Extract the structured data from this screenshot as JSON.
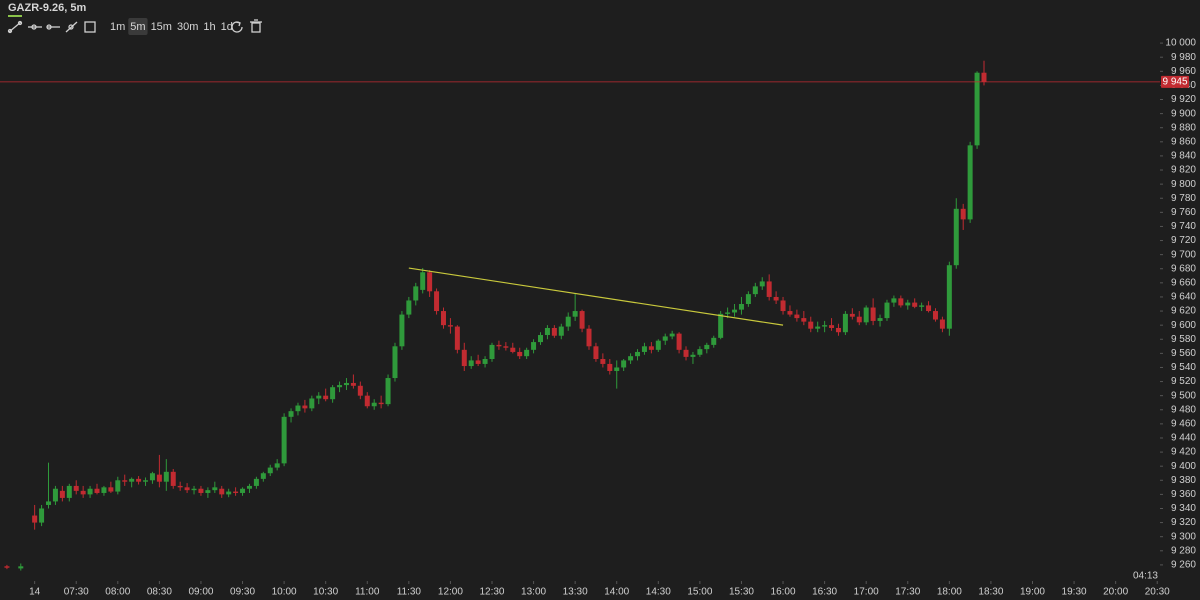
{
  "toolbar": {
    "symbol": "GAZR-9.26, 5m",
    "intervals": [
      "1m",
      "5m",
      "15m",
      "30m",
      "1h",
      "1d"
    ],
    "active_interval": 1
  },
  "chart_data": {
    "type": "candlestick",
    "up_color": "#2f9a3b",
    "down_color": "#c22b31",
    "xlim": [
      "06:35",
      "20:32"
    ],
    "ylim": [
      9240,
      10020
    ],
    "xticks": [
      {
        "value": "07:00",
        "label": "14"
      },
      "07:30",
      "08:00",
      "08:30",
      "09:00",
      "09:30",
      "10:00",
      "10:30",
      "11:00",
      "11:30",
      "12:00",
      "12:30",
      "13:00",
      "13:30",
      "14:00",
      "14:30",
      "15:00",
      "15:30",
      "16:00",
      "16:30",
      "17:00",
      "17:30",
      "18:00",
      "18:30",
      "19:00",
      "19:30",
      "20:00",
      "20:30"
    ],
    "yticks": [
      {
        "value": 9260,
        "label": "9 260"
      },
      {
        "value": 9280,
        "label": "9 280"
      },
      {
        "value": 9300,
        "label": "9 300"
      },
      {
        "value": 9320,
        "label": "9 320"
      },
      {
        "value": 9340,
        "label": "9 340"
      },
      {
        "value": 9360,
        "label": "9 360"
      },
      {
        "value": 9380,
        "label": "9 380"
      },
      {
        "value": 9400,
        "label": "9 400"
      },
      {
        "value": 9420,
        "label": "9 420"
      },
      {
        "value": 9440,
        "label": "9 440"
      },
      {
        "value": 9460,
        "label": "9 460"
      },
      {
        "value": 9480,
        "label": "9 480"
      },
      {
        "value": 9500,
        "label": "9 500"
      },
      {
        "value": 9520,
        "label": "9 520"
      },
      {
        "value": 9540,
        "label": "9 540"
      },
      {
        "value": 9560,
        "label": "9 560"
      },
      {
        "value": 9580,
        "label": "9 580"
      },
      {
        "value": 9600,
        "label": "9 600"
      },
      {
        "value": 9620,
        "label": "9 620"
      },
      {
        "value": 9640,
        "label": "9 640"
      },
      {
        "value": 9660,
        "label": "9 660"
      },
      {
        "value": 9680,
        "label": "9 680"
      },
      {
        "value": 9700,
        "label": "9 700"
      },
      {
        "value": 9720,
        "label": "9 720"
      },
      {
        "value": 9740,
        "label": "9 740"
      },
      {
        "value": 9760,
        "label": "9 760"
      },
      {
        "value": 9780,
        "label": "9 780"
      },
      {
        "value": 9800,
        "label": "9 800"
      },
      {
        "value": 9820,
        "label": "9 820"
      },
      {
        "value": 9840,
        "label": "9 840"
      },
      {
        "value": 9860,
        "label": "9 860"
      },
      {
        "value": 9880,
        "label": "9 880"
      },
      {
        "value": 9900,
        "label": "9 900"
      },
      {
        "value": 9920,
        "label": "9 920"
      },
      {
        "value": 9940,
        "label": "9 940"
      },
      {
        "value": 9960,
        "label": "9 960"
      },
      {
        "value": 9980,
        "label": "9 980"
      },
      {
        "value": 10000,
        "label": "10 000"
      }
    ],
    "last_price": {
      "value": 9945,
      "label": "9 945"
    },
    "last_price_color": "#c22b31",
    "trendline": {
      "x": [
        "11:30",
        "16:00"
      ],
      "y": [
        9681,
        9600
      ],
      "color": "#c9c93c"
    },
    "countdown": "04:13",
    "x": [
      "06:40",
      "06:50",
      "07:00",
      "07:05",
      "07:10",
      "07:15",
      "07:20",
      "07:25",
      "07:30",
      "07:35",
      "07:40",
      "07:45",
      "07:50",
      "07:55",
      "08:00",
      "08:05",
      "08:10",
      "08:15",
      "08:20",
      "08:25",
      "08:30",
      "08:35",
      "08:40",
      "08:45",
      "08:50",
      "08:55",
      "09:00",
      "09:05",
      "09:10",
      "09:15",
      "09:20",
      "09:25",
      "09:30",
      "09:35",
      "09:40",
      "09:45",
      "09:50",
      "09:55",
      "10:00",
      "10:05",
      "10:10",
      "10:15",
      "10:20",
      "10:25",
      "10:30",
      "10:35",
      "10:40",
      "10:45",
      "10:50",
      "10:55",
      "11:00",
      "11:05",
      "11:10",
      "11:15",
      "11:20",
      "11:25",
      "11:30",
      "11:35",
      "11:40",
      "11:45",
      "11:50",
      "11:55",
      "12:00",
      "12:05",
      "12:10",
      "12:15",
      "12:20",
      "12:25",
      "12:30",
      "12:35",
      "12:40",
      "12:45",
      "12:50",
      "12:55",
      "13:00",
      "13:05",
      "13:10",
      "13:15",
      "13:20",
      "13:25",
      "13:30",
      "13:35",
      "13:40",
      "13:45",
      "13:50",
      "13:55",
      "14:00",
      "14:05",
      "14:10",
      "14:15",
      "14:20",
      "14:25",
      "14:30",
      "14:35",
      "14:40",
      "14:45",
      "14:50",
      "14:55",
      "15:00",
      "15:05",
      "15:10",
      "15:15",
      "15:20",
      "15:25",
      "15:30",
      "15:35",
      "15:40",
      "15:45",
      "15:50",
      "15:55",
      "16:00",
      "16:05",
      "16:10",
      "16:15",
      "16:20",
      "16:25",
      "16:30",
      "16:35",
      "16:40",
      "16:45",
      "16:50",
      "16:55",
      "17:00",
      "17:05",
      "17:10",
      "17:15",
      "17:20",
      "17:25",
      "17:30",
      "17:35",
      "17:40",
      "17:45",
      "17:50",
      "17:55",
      "18:00",
      "18:05",
      "18:10",
      "18:15",
      "18:20",
      "18:25"
    ],
    "ohlc": [
      [
        9258,
        9260,
        9254,
        9256
      ],
      [
        9255,
        9262,
        9252,
        9258
      ],
      [
        9330,
        9345,
        9310,
        9320
      ],
      [
        9320,
        9345,
        9315,
        9340
      ],
      [
        9345,
        9405,
        9340,
        9350
      ],
      [
        9350,
        9372,
        9345,
        9368
      ],
      [
        9365,
        9372,
        9350,
        9355
      ],
      [
        9355,
        9375,
        9350,
        9372
      ],
      [
        9372,
        9380,
        9360,
        9365
      ],
      [
        9365,
        9372,
        9355,
        9360
      ],
      [
        9360,
        9372,
        9355,
        9368
      ],
      [
        9368,
        9375,
        9360,
        9362
      ],
      [
        9362,
        9372,
        9358,
        9370
      ],
      [
        9370,
        9378,
        9362,
        9364
      ],
      [
        9364,
        9385,
        9360,
        9380
      ],
      [
        9380,
        9388,
        9372,
        9378
      ],
      [
        9378,
        9384,
        9370,
        9382
      ],
      [
        9382,
        9386,
        9374,
        9378
      ],
      [
        9378,
        9384,
        9372,
        9380
      ],
      [
        9380,
        9392,
        9375,
        9390
      ],
      [
        9388,
        9416,
        9370,
        9378
      ],
      [
        9378,
        9410,
        9365,
        9392
      ],
      [
        9392,
        9396,
        9368,
        9372
      ],
      [
        9372,
        9378,
        9365,
        9370
      ],
      [
        9370,
        9376,
        9362,
        9366
      ],
      [
        9366,
        9372,
        9360,
        9368
      ],
      [
        9368,
        9372,
        9358,
        9362
      ],
      [
        9362,
        9370,
        9355,
        9366
      ],
      [
        9366,
        9378,
        9362,
        9370
      ],
      [
        9368,
        9372,
        9355,
        9360
      ],
      [
        9360,
        9368,
        9356,
        9364
      ],
      [
        9364,
        9370,
        9358,
        9362
      ],
      [
        9362,
        9370,
        9358,
        9368
      ],
      [
        9368,
        9375,
        9362,
        9372
      ],
      [
        9372,
        9385,
        9368,
        9382
      ],
      [
        9382,
        9392,
        9378,
        9390
      ],
      [
        9390,
        9402,
        9386,
        9398
      ],
      [
        9398,
        9410,
        9394,
        9404
      ],
      [
        9404,
        9475,
        9400,
        9470
      ],
      [
        9470,
        9482,
        9462,
        9478
      ],
      [
        9478,
        9490,
        9472,
        9486
      ],
      [
        9486,
        9494,
        9476,
        9482
      ],
      [
        9482,
        9500,
        9478,
        9496
      ],
      [
        9496,
        9505,
        9488,
        9500
      ],
      [
        9500,
        9510,
        9492,
        9495
      ],
      [
        9495,
        9515,
        9490,
        9512
      ],
      [
        9512,
        9520,
        9505,
        9515
      ],
      [
        9515,
        9525,
        9508,
        9518
      ],
      [
        9518,
        9530,
        9510,
        9514
      ],
      [
        9514,
        9520,
        9495,
        9500
      ],
      [
        9500,
        9505,
        9482,
        9485
      ],
      [
        9485,
        9495,
        9480,
        9490
      ],
      [
        9490,
        9500,
        9482,
        9488
      ],
      [
        9488,
        9530,
        9485,
        9525
      ],
      [
        9525,
        9575,
        9520,
        9570
      ],
      [
        9570,
        9620,
        9565,
        9615
      ],
      [
        9615,
        9640,
        9610,
        9635
      ],
      [
        9635,
        9660,
        9628,
        9655
      ],
      [
        9650,
        9681,
        9645,
        9675
      ],
      [
        9675,
        9678,
        9640,
        9648
      ],
      [
        9648,
        9652,
        9615,
        9620
      ],
      [
        9620,
        9625,
        9595,
        9600
      ],
      [
        9600,
        9610,
        9588,
        9598
      ],
      [
        9598,
        9600,
        9560,
        9565
      ],
      [
        9565,
        9575,
        9535,
        9542
      ],
      [
        9542,
        9556,
        9538,
        9550
      ],
      [
        9550,
        9558,
        9542,
        9545
      ],
      [
        9545,
        9556,
        9540,
        9552
      ],
      [
        9552,
        9575,
        9548,
        9572
      ],
      [
        9572,
        9578,
        9565,
        9570
      ],
      [
        9570,
        9576,
        9564,
        9568
      ],
      [
        9568,
        9575,
        9560,
        9562
      ],
      [
        9562,
        9568,
        9552,
        9556
      ],
      [
        9556,
        9568,
        9552,
        9565
      ],
      [
        9565,
        9580,
        9560,
        9576
      ],
      [
        9576,
        9590,
        9572,
        9586
      ],
      [
        9586,
        9600,
        9580,
        9596
      ],
      [
        9596,
        9600,
        9582,
        9585
      ],
      [
        9585,
        9602,
        9580,
        9598
      ],
      [
        9598,
        9618,
        9592,
        9612
      ],
      [
        9612,
        9645,
        9606,
        9620
      ],
      [
        9620,
        9622,
        9590,
        9595
      ],
      [
        9595,
        9600,
        9565,
        9570
      ],
      [
        9570,
        9575,
        9548,
        9552
      ],
      [
        9552,
        9560,
        9540,
        9545
      ],
      [
        9545,
        9552,
        9530,
        9535
      ],
      [
        9535,
        9550,
        9510,
        9540
      ],
      [
        9540,
        9552,
        9535,
        9550
      ],
      [
        9550,
        9560,
        9545,
        9556
      ],
      [
        9556,
        9566,
        9550,
        9562
      ],
      [
        9562,
        9575,
        9558,
        9570
      ],
      [
        9570,
        9576,
        9560,
        9565
      ],
      [
        9565,
        9580,
        9562,
        9578
      ],
      [
        9578,
        9588,
        9572,
        9584
      ],
      [
        9584,
        9592,
        9580,
        9588
      ],
      [
        9588,
        9590,
        9560,
        9565
      ],
      [
        9565,
        9570,
        9550,
        9555
      ],
      [
        9555,
        9562,
        9545,
        9558
      ],
      [
        9558,
        9570,
        9555,
        9566
      ],
      [
        9566,
        9575,
        9560,
        9572
      ],
      [
        9572,
        9585,
        9568,
        9582
      ],
      [
        9582,
        9620,
        9580,
        9616
      ],
      [
        9616,
        9625,
        9610,
        9618
      ],
      [
        9618,
        9630,
        9612,
        9622
      ],
      [
        9622,
        9640,
        9615,
        9630
      ],
      [
        9630,
        9648,
        9626,
        9644
      ],
      [
        9644,
        9660,
        9640,
        9655
      ],
      [
        9655,
        9668,
        9650,
        9662
      ],
      [
        9662,
        9672,
        9635,
        9640
      ],
      [
        9640,
        9648,
        9630,
        9635
      ],
      [
        9635,
        9640,
        9615,
        9620
      ],
      [
        9620,
        9628,
        9612,
        9615
      ],
      [
        9615,
        9622,
        9605,
        9610
      ],
      [
        9610,
        9620,
        9600,
        9605
      ],
      [
        9605,
        9612,
        9590,
        9595
      ],
      [
        9595,
        9605,
        9590,
        9598
      ],
      [
        9598,
        9606,
        9590,
        9600
      ],
      [
        9600,
        9610,
        9592,
        9596
      ],
      [
        9596,
        9602,
        9585,
        9590
      ],
      [
        9590,
        9620,
        9586,
        9616
      ],
      [
        9616,
        9624,
        9608,
        9612
      ],
      [
        9612,
        9620,
        9600,
        9604
      ],
      [
        9604,
        9628,
        9600,
        9625
      ],
      [
        9625,
        9638,
        9600,
        9606
      ],
      [
        9606,
        9615,
        9598,
        9610
      ],
      [
        9610,
        9636,
        9606,
        9632
      ],
      [
        9632,
        9642,
        9626,
        9638
      ],
      [
        9638,
        9642,
        9625,
        9628
      ],
      [
        9628,
        9636,
        9622,
        9632
      ],
      [
        9632,
        9638,
        9624,
        9626
      ],
      [
        9626,
        9632,
        9620,
        9628
      ],
      [
        9628,
        9634,
        9618,
        9620
      ],
      [
        9620,
        9624,
        9605,
        9608
      ],
      [
        9608,
        9612,
        9590,
        9595
      ],
      [
        9595,
        9690,
        9585,
        9685
      ],
      [
        9685,
        9780,
        9680,
        9765
      ],
      [
        9765,
        9772,
        9735,
        9750
      ],
      [
        9750,
        9860,
        9745,
        9855
      ],
      [
        9855,
        9960,
        9850,
        9958
      ],
      [
        9958,
        9975,
        9940,
        9945
      ]
    ]
  }
}
